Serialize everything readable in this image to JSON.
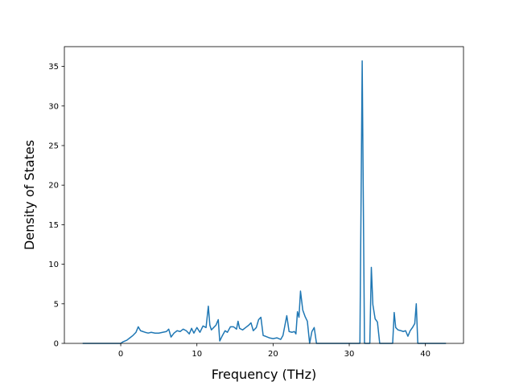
{
  "chart_data": {
    "type": "line",
    "title": "",
    "xlabel": "Frequency (THz)",
    "ylabel": "Density of States",
    "xlim": [
      -7.4,
      45.0
    ],
    "ylim": [
      0,
      37.5
    ],
    "xticks": [
      0,
      10,
      20,
      30,
      40
    ],
    "yticks": [
      0,
      5,
      10,
      15,
      20,
      25,
      30,
      35
    ],
    "grid": false,
    "legend": "none",
    "colors": {
      "line": "#1f77b4",
      "axis": "#000000"
    },
    "series": [
      {
        "x": [
          -5.0,
          -3.0,
          -1.0,
          0.0,
          0.3,
          0.8,
          1.2,
          1.6,
          2.0,
          2.3,
          2.6,
          2.9,
          3.2,
          3.6,
          4.0,
          4.5,
          5.0,
          5.5,
          6.0,
          6.3,
          6.6,
          7.0,
          7.4,
          7.8,
          8.2,
          8.6,
          9.0,
          9.3,
          9.6,
          10.0,
          10.4,
          10.8,
          11.2,
          11.5,
          11.7,
          11.9,
          12.2,
          12.5,
          12.8,
          13.0,
          13.3,
          13.7,
          14.0,
          14.4,
          14.8,
          15.2,
          15.4,
          15.6,
          16.0,
          16.4,
          16.8,
          17.1,
          17.4,
          17.8,
          18.1,
          18.4,
          18.7,
          19.0,
          19.5,
          20.0,
          20.5,
          21.0,
          21.3,
          21.6,
          21.8,
          22.1,
          22.5,
          22.8,
          23.0,
          23.2,
          23.4,
          23.6,
          23.9,
          24.2,
          24.5,
          24.8,
          25.1,
          25.4,
          25.7,
          26.0,
          30.0,
          31.4,
          31.7,
          32.0,
          32.4,
          32.7,
          32.9,
          33.1,
          33.4,
          33.7,
          34.0,
          35.0,
          35.7,
          35.9,
          36.1,
          36.4,
          36.8,
          37.1,
          37.4,
          37.7,
          38.0,
          38.3,
          38.6,
          38.8,
          39.0,
          40.0,
          42.7
        ],
        "y": [
          0,
          0,
          0,
          0,
          0.2,
          0.4,
          0.7,
          1.0,
          1.4,
          2.1,
          1.6,
          1.5,
          1.4,
          1.3,
          1.4,
          1.3,
          1.3,
          1.4,
          1.5,
          1.8,
          0.8,
          1.3,
          1.6,
          1.5,
          1.8,
          1.6,
          1.2,
          1.9,
          1.3,
          2.0,
          1.4,
          2.2,
          2.0,
          4.7,
          2.3,
          1.7,
          2.0,
          2.3,
          3.0,
          0.3,
          0.9,
          1.6,
          1.4,
          2.1,
          2.1,
          1.8,
          2.8,
          1.9,
          1.7,
          2.0,
          2.3,
          2.6,
          1.6,
          2.0,
          3.0,
          3.3,
          1.0,
          0.9,
          0.7,
          0.6,
          0.7,
          0.5,
          1.0,
          2.5,
          3.5,
          1.5,
          1.4,
          1.5,
          1.2,
          4.0,
          3.3,
          6.6,
          4.2,
          3.4,
          2.8,
          0,
          1.5,
          2.0,
          0,
          0,
          0,
          0,
          35.7,
          0,
          0,
          0,
          9.6,
          4.9,
          3.1,
          2.7,
          0,
          0,
          0,
          3.9,
          2.0,
          1.7,
          1.6,
          1.5,
          1.6,
          0.9,
          1.6,
          2.0,
          2.5,
          5.0,
          0,
          0,
          0
        ]
      }
    ]
  }
}
